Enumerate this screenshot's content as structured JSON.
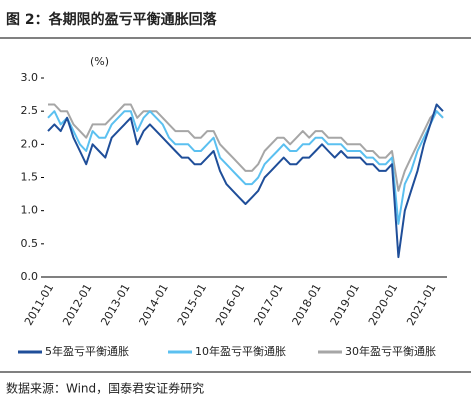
{
  "chart_data": {
    "type": "line",
    "title": "图 2：各期限的盈亏平衡通胀回落",
    "y_unit": "(%)",
    "source": "数据来源：Wind，国泰君安证券研究",
    "categories": [
      "2011-01",
      null,
      null,
      null,
      null,
      null,
      "2012-01",
      null,
      null,
      null,
      null,
      null,
      "2013-01",
      null,
      null,
      null,
      null,
      null,
      "2014-01",
      null,
      null,
      null,
      null,
      null,
      "2015-01",
      null,
      null,
      null,
      null,
      null,
      "2016-01",
      null,
      null,
      null,
      null,
      null,
      "2017-01",
      null,
      null,
      null,
      null,
      null,
      "2018-01",
      null,
      null,
      null,
      null,
      null,
      "2019-01",
      null,
      null,
      null,
      null,
      null,
      "2020-01",
      null,
      null,
      null,
      null,
      null,
      "2021-01",
      null,
      null
    ],
    "series": [
      {
        "name": "30年盈亏平衡通胀",
        "color": "#a6a6a6",
        "values": [
          2.6,
          2.6,
          2.5,
          2.5,
          2.3,
          2.2,
          2.1,
          2.3,
          2.3,
          2.3,
          2.4,
          2.5,
          2.6,
          2.6,
          2.4,
          2.5,
          2.5,
          2.5,
          2.4,
          2.3,
          2.2,
          2.2,
          2.2,
          2.1,
          2.1,
          2.2,
          2.2,
          2.0,
          1.9,
          1.8,
          1.7,
          1.6,
          1.6,
          1.7,
          1.9,
          2.0,
          2.1,
          2.1,
          2.0,
          2.1,
          2.2,
          2.1,
          2.2,
          2.2,
          2.1,
          2.1,
          2.1,
          2.0,
          2.0,
          2.0,
          1.9,
          1.9,
          1.8,
          1.8,
          1.9,
          1.3,
          1.6,
          1.8,
          2.0,
          2.2,
          2.4,
          2.5,
          2.4
        ]
      },
      {
        "name": "10年盈亏平衡通胀",
        "color": "#5bc0f0",
        "values": [
          2.4,
          2.5,
          2.3,
          2.4,
          2.2,
          2.0,
          1.9,
          2.2,
          2.1,
          2.1,
          2.3,
          2.4,
          2.5,
          2.5,
          2.2,
          2.4,
          2.5,
          2.4,
          2.3,
          2.1,
          2.0,
          2.0,
          2.0,
          1.9,
          1.9,
          2.0,
          2.1,
          1.8,
          1.7,
          1.6,
          1.5,
          1.4,
          1.4,
          1.5,
          1.7,
          1.8,
          1.9,
          2.0,
          1.9,
          1.9,
          2.0,
          2.0,
          2.1,
          2.1,
          2.0,
          2.0,
          2.0,
          1.9,
          1.9,
          1.9,
          1.8,
          1.8,
          1.7,
          1.7,
          1.8,
          0.8,
          1.4,
          1.6,
          1.9,
          2.1,
          2.3,
          2.5,
          2.4
        ]
      },
      {
        "name": "5年盈亏平衡通胀",
        "color": "#1f4e99",
        "values": [
          2.2,
          2.3,
          2.2,
          2.4,
          2.1,
          1.9,
          1.7,
          2.0,
          1.9,
          1.8,
          2.1,
          2.2,
          2.3,
          2.4,
          2.0,
          2.2,
          2.3,
          2.2,
          2.1,
          2.0,
          1.9,
          1.8,
          1.8,
          1.7,
          1.7,
          1.8,
          1.9,
          1.6,
          1.4,
          1.3,
          1.2,
          1.1,
          1.2,
          1.3,
          1.5,
          1.6,
          1.7,
          1.8,
          1.7,
          1.7,
          1.8,
          1.8,
          1.9,
          2.0,
          1.9,
          1.8,
          1.9,
          1.8,
          1.8,
          1.8,
          1.7,
          1.7,
          1.6,
          1.6,
          1.7,
          0.3,
          1.0,
          1.3,
          1.6,
          2.0,
          2.3,
          2.6,
          2.5
        ]
      }
    ],
    "legend_order": [
      2,
      1,
      0
    ],
    "ylim": [
      0,
      3
    ],
    "yticks": [
      {
        "value": 0,
        "label": "0.0"
      },
      {
        "value": 0.5,
        "label": "0.5"
      },
      {
        "value": 1,
        "label": "1.0"
      },
      {
        "value": 1.5,
        "label": "1.5"
      },
      {
        "value": 2,
        "label": "2.0"
      },
      {
        "value": 2.5,
        "label": "2.5"
      },
      {
        "value": 3,
        "label": "3.0"
      }
    ],
    "grid": false
  }
}
